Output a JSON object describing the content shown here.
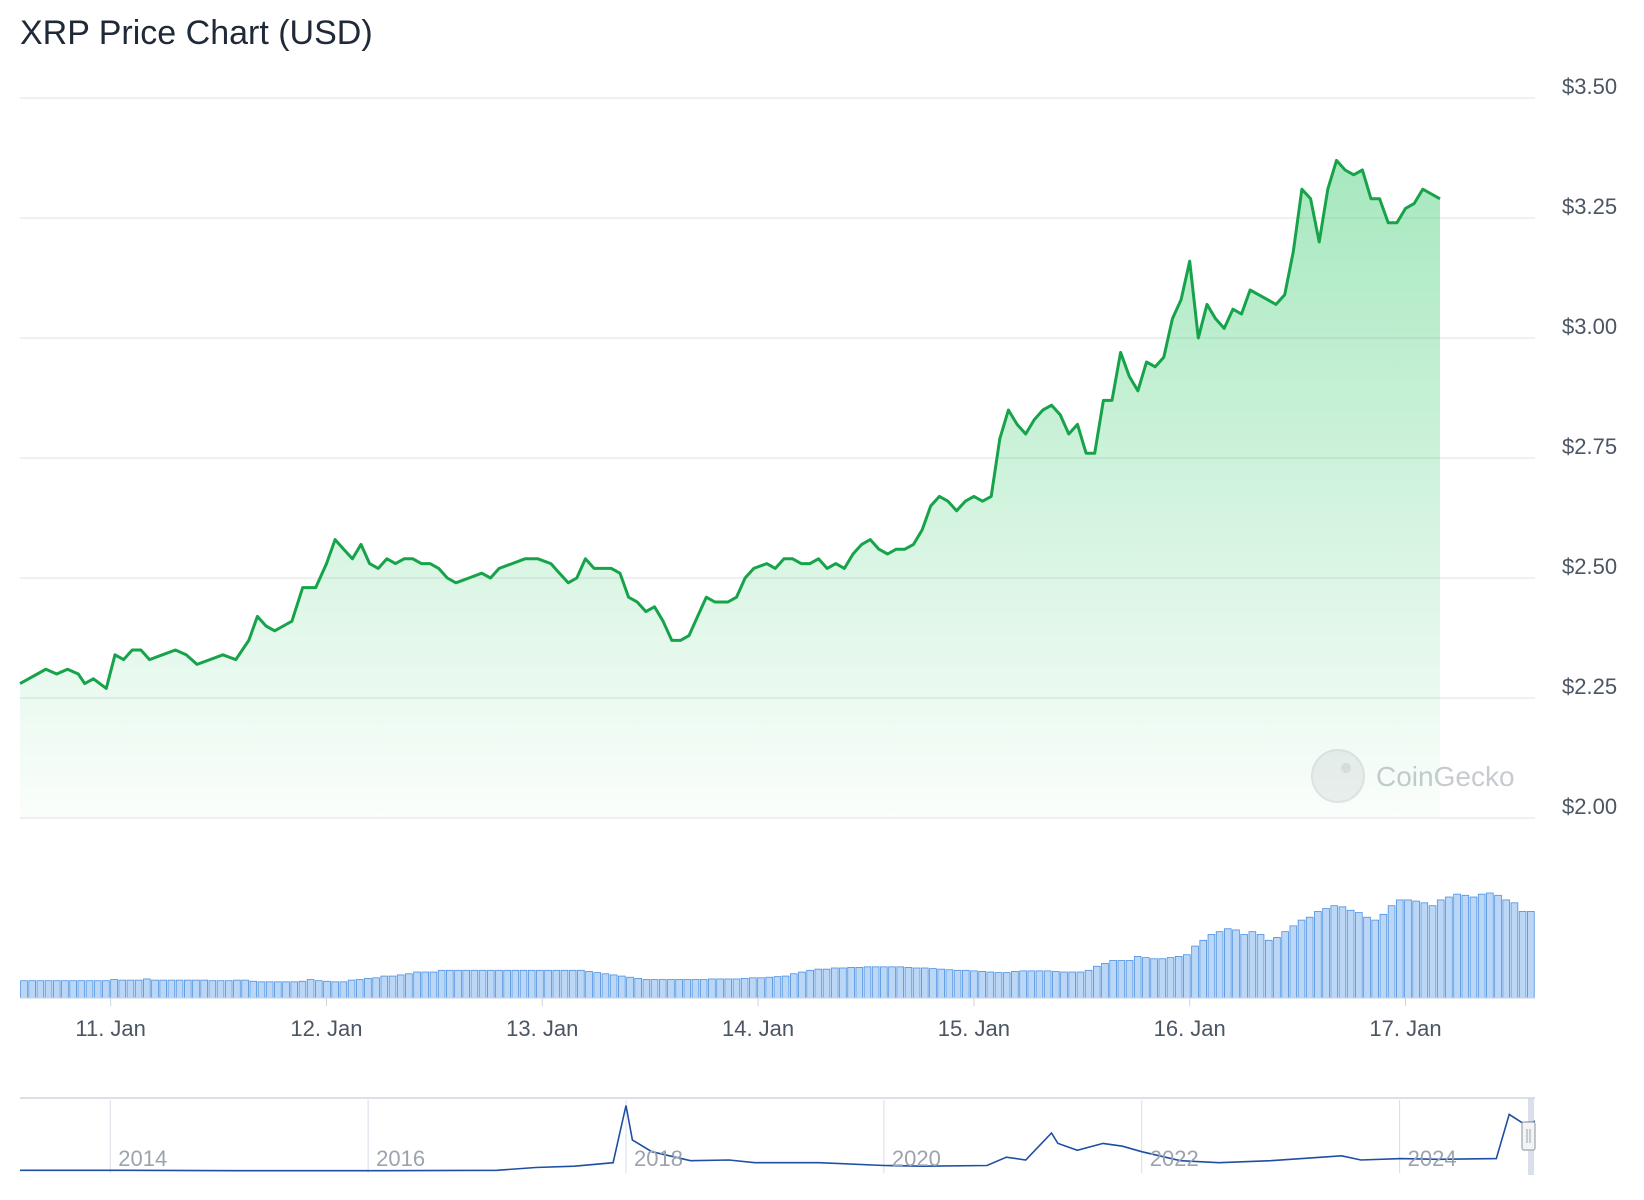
{
  "title": "XRP Price Chart (USD)",
  "watermark": "CoinGecko",
  "colors": {
    "line": "#16a34a",
    "area_top": "#22c55e",
    "volume_fill": "#bcd7f5",
    "volume_stroke": "#4a90e2",
    "navigator_line": "#1e4fa3",
    "grid": "#e5e7eb"
  },
  "chart_data": {
    "type": "line",
    "ylim": [
      2.0,
      3.5
    ],
    "y_ticks": [
      "$3.50",
      "$3.25",
      "$3.00",
      "$2.75",
      "$2.50",
      "$2.25",
      "$2.00"
    ],
    "y_tick_values": [
      3.5,
      3.25,
      3.0,
      2.75,
      2.5,
      2.25,
      2.0
    ],
    "x_ticks": [
      "11. Jan",
      "12. Jan",
      "13. Jan",
      "14. Jan",
      "15. Jan",
      "16. Jan",
      "17. Jan"
    ],
    "x_range_days": [
      10.58,
      17.6
    ],
    "series": [
      {
        "values": [
          [
            10.58,
            2.28
          ],
          [
            10.62,
            2.29
          ],
          [
            10.66,
            2.3
          ],
          [
            10.7,
            2.31
          ],
          [
            10.75,
            2.3
          ],
          [
            10.8,
            2.31
          ],
          [
            10.85,
            2.3
          ],
          [
            10.88,
            2.28
          ],
          [
            10.92,
            2.29
          ],
          [
            10.98,
            2.27
          ],
          [
            11.02,
            2.34
          ],
          [
            11.06,
            2.33
          ],
          [
            11.1,
            2.35
          ],
          [
            11.14,
            2.35
          ],
          [
            11.18,
            2.33
          ],
          [
            11.24,
            2.34
          ],
          [
            11.3,
            2.35
          ],
          [
            11.35,
            2.34
          ],
          [
            11.4,
            2.32
          ],
          [
            11.46,
            2.33
          ],
          [
            11.52,
            2.34
          ],
          [
            11.58,
            2.33
          ],
          [
            11.64,
            2.37
          ],
          [
            11.68,
            2.42
          ],
          [
            11.72,
            2.4
          ],
          [
            11.76,
            2.39
          ],
          [
            11.8,
            2.4
          ],
          [
            11.84,
            2.41
          ],
          [
            11.89,
            2.48
          ],
          [
            11.95,
            2.48
          ],
          [
            12.0,
            2.53
          ],
          [
            12.04,
            2.58
          ],
          [
            12.08,
            2.56
          ],
          [
            12.12,
            2.54
          ],
          [
            12.16,
            2.57
          ],
          [
            12.2,
            2.53
          ],
          [
            12.24,
            2.52
          ],
          [
            12.28,
            2.54
          ],
          [
            12.32,
            2.53
          ],
          [
            12.36,
            2.54
          ],
          [
            12.4,
            2.54
          ],
          [
            12.44,
            2.53
          ],
          [
            12.48,
            2.53
          ],
          [
            12.52,
            2.52
          ],
          [
            12.56,
            2.5
          ],
          [
            12.6,
            2.49
          ],
          [
            12.66,
            2.5
          ],
          [
            12.72,
            2.51
          ],
          [
            12.76,
            2.5
          ],
          [
            12.8,
            2.52
          ],
          [
            12.86,
            2.53
          ],
          [
            12.92,
            2.54
          ],
          [
            12.98,
            2.54
          ],
          [
            13.04,
            2.53
          ],
          [
            13.08,
            2.51
          ],
          [
            13.12,
            2.49
          ],
          [
            13.16,
            2.5
          ],
          [
            13.2,
            2.54
          ],
          [
            13.24,
            2.52
          ],
          [
            13.28,
            2.52
          ],
          [
            13.32,
            2.52
          ],
          [
            13.36,
            2.51
          ],
          [
            13.4,
            2.46
          ],
          [
            13.44,
            2.45
          ],
          [
            13.48,
            2.43
          ],
          [
            13.52,
            2.44
          ],
          [
            13.56,
            2.41
          ],
          [
            13.6,
            2.37
          ],
          [
            13.64,
            2.37
          ],
          [
            13.68,
            2.38
          ],
          [
            13.72,
            2.42
          ],
          [
            13.76,
            2.46
          ],
          [
            13.8,
            2.45
          ],
          [
            13.86,
            2.45
          ],
          [
            13.9,
            2.46
          ],
          [
            13.94,
            2.5
          ],
          [
            13.98,
            2.52
          ],
          [
            14.04,
            2.53
          ],
          [
            14.08,
            2.52
          ],
          [
            14.12,
            2.54
          ],
          [
            14.16,
            2.54
          ],
          [
            14.2,
            2.53
          ],
          [
            14.24,
            2.53
          ],
          [
            14.28,
            2.54
          ],
          [
            14.32,
            2.52
          ],
          [
            14.36,
            2.53
          ],
          [
            14.4,
            2.52
          ],
          [
            14.44,
            2.55
          ],
          [
            14.48,
            2.57
          ],
          [
            14.52,
            2.58
          ],
          [
            14.56,
            2.56
          ],
          [
            14.6,
            2.55
          ],
          [
            14.64,
            2.56
          ],
          [
            14.68,
            2.56
          ],
          [
            14.72,
            2.57
          ],
          [
            14.76,
            2.6
          ],
          [
            14.8,
            2.65
          ],
          [
            14.84,
            2.67
          ],
          [
            14.88,
            2.66
          ],
          [
            14.92,
            2.64
          ],
          [
            14.96,
            2.66
          ],
          [
            15.0,
            2.67
          ],
          [
            15.04,
            2.66
          ],
          [
            15.08,
            2.67
          ],
          [
            15.12,
            2.79
          ],
          [
            15.16,
            2.85
          ],
          [
            15.2,
            2.82
          ],
          [
            15.24,
            2.8
          ],
          [
            15.28,
            2.83
          ],
          [
            15.32,
            2.85
          ],
          [
            15.36,
            2.86
          ],
          [
            15.4,
            2.84
          ],
          [
            15.44,
            2.8
          ],
          [
            15.48,
            2.82
          ],
          [
            15.52,
            2.76
          ],
          [
            15.56,
            2.76
          ],
          [
            15.6,
            2.87
          ],
          [
            15.64,
            2.87
          ],
          [
            15.68,
            2.97
          ],
          [
            15.72,
            2.92
          ],
          [
            15.76,
            2.89
          ],
          [
            15.8,
            2.95
          ],
          [
            15.84,
            2.94
          ],
          [
            15.88,
            2.96
          ],
          [
            15.92,
            3.04
          ],
          [
            15.96,
            3.08
          ],
          [
            16.0,
            3.16
          ],
          [
            16.04,
            3.0
          ],
          [
            16.08,
            3.07
          ],
          [
            16.12,
            3.04
          ],
          [
            16.16,
            3.02
          ],
          [
            16.2,
            3.06
          ],
          [
            16.24,
            3.05
          ],
          [
            16.28,
            3.1
          ],
          [
            16.32,
            3.09
          ],
          [
            16.36,
            3.08
          ],
          [
            16.4,
            3.07
          ],
          [
            16.44,
            3.09
          ],
          [
            16.48,
            3.18
          ],
          [
            16.52,
            3.31
          ],
          [
            16.56,
            3.29
          ],
          [
            16.6,
            3.2
          ],
          [
            16.64,
            3.31
          ],
          [
            16.68,
            3.37
          ],
          [
            16.72,
            3.35
          ],
          [
            16.76,
            3.34
          ],
          [
            16.8,
            3.35
          ],
          [
            16.84,
            3.29
          ],
          [
            16.88,
            3.29
          ],
          [
            16.92,
            3.24
          ],
          [
            16.96,
            3.24
          ],
          [
            17.0,
            3.27
          ],
          [
            17.04,
            3.28
          ],
          [
            17.08,
            3.31
          ],
          [
            17.12,
            3.3
          ],
          [
            17.16,
            3.29
          ]
        ]
      }
    ],
    "volume": [
      30,
      30,
      30,
      30,
      30,
      30,
      30,
      30,
      30,
      30,
      30,
      32,
      31,
      31,
      31,
      33,
      31,
      31,
      31,
      31,
      31,
      31,
      31,
      30,
      30,
      30,
      31,
      31,
      29,
      28,
      28,
      28,
      28,
      28,
      29,
      32,
      30,
      29,
      28,
      28,
      31,
      32,
      34,
      35,
      38,
      38,
      40,
      42,
      45,
      45,
      45,
      48,
      48,
      48,
      48,
      48,
      48,
      48,
      48,
      48,
      48,
      48,
      48,
      48,
      48,
      48,
      48,
      48,
      48,
      46,
      44,
      42,
      40,
      38,
      36,
      34,
      32,
      32,
      32,
      32,
      32,
      32,
      32,
      32,
      33,
      33,
      33,
      33,
      34,
      35,
      35,
      36,
      37,
      38,
      42,
      45,
      48,
      50,
      50,
      52,
      52,
      53,
      53,
      54,
      54,
      54,
      54,
      54,
      53,
      52,
      52,
      51,
      50,
      49,
      48,
      48,
      47,
      46,
      45,
      44,
      44,
      46,
      47,
      47,
      47,
      47,
      46,
      45,
      45,
      45,
      48,
      55,
      60,
      65,
      65,
      65,
      72,
      70,
      68,
      68,
      70,
      72,
      75,
      90,
      100,
      110,
      115,
      120,
      118,
      110,
      115,
      110,
      100,
      105,
      115,
      125,
      135,
      140,
      150,
      155,
      160,
      158,
      152,
      148,
      140,
      135,
      145,
      160,
      170,
      170,
      168,
      165,
      160,
      170,
      175,
      180,
      178,
      175,
      180,
      182,
      178,
      170,
      165,
      150,
      150
    ],
    "navigator": {
      "x_ticks": [
        "2014",
        "2016",
        "2018",
        "2020",
        "2022",
        "2024"
      ]
    }
  }
}
